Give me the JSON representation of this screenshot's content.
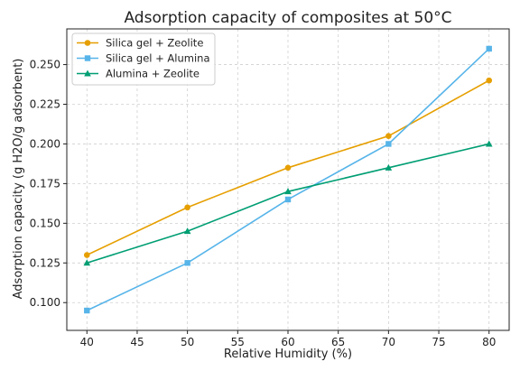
{
  "chart_data": {
    "type": "line",
    "title": "Adsorption capacity of composites at 50°C",
    "xlabel": "Relative Humidity (%)",
    "ylabel": "Adsorption capacity (g H2O/g adsorbent)",
    "x": [
      40,
      50,
      60,
      70,
      80
    ],
    "xlim": [
      38,
      82
    ],
    "ylim": [
      0.0825,
      0.2725
    ],
    "x_ticks": [
      "40",
      "45",
      "50",
      "55",
      "60",
      "65",
      "70",
      "75",
      "80"
    ],
    "y_ticks": [
      "0.100",
      "0.125",
      "0.150",
      "0.175",
      "0.200",
      "0.225",
      "0.250"
    ],
    "grid": true,
    "legend_position": "top-left",
    "series": [
      {
        "name": "Silica gel + Zeolite",
        "values": [
          0.13,
          0.16,
          0.185,
          0.205,
          0.24
        ],
        "color": "#E69F00",
        "marker": "circle"
      },
      {
        "name": "Silica gel + Alumina",
        "values": [
          0.095,
          0.125,
          0.165,
          0.2,
          0.26
        ],
        "color": "#56B4E9",
        "marker": "square"
      },
      {
        "name": "Alumina + Zeolite",
        "values": [
          0.125,
          0.145,
          0.17,
          0.185,
          0.2
        ],
        "color": "#009E73",
        "marker": "triangle"
      }
    ]
  }
}
